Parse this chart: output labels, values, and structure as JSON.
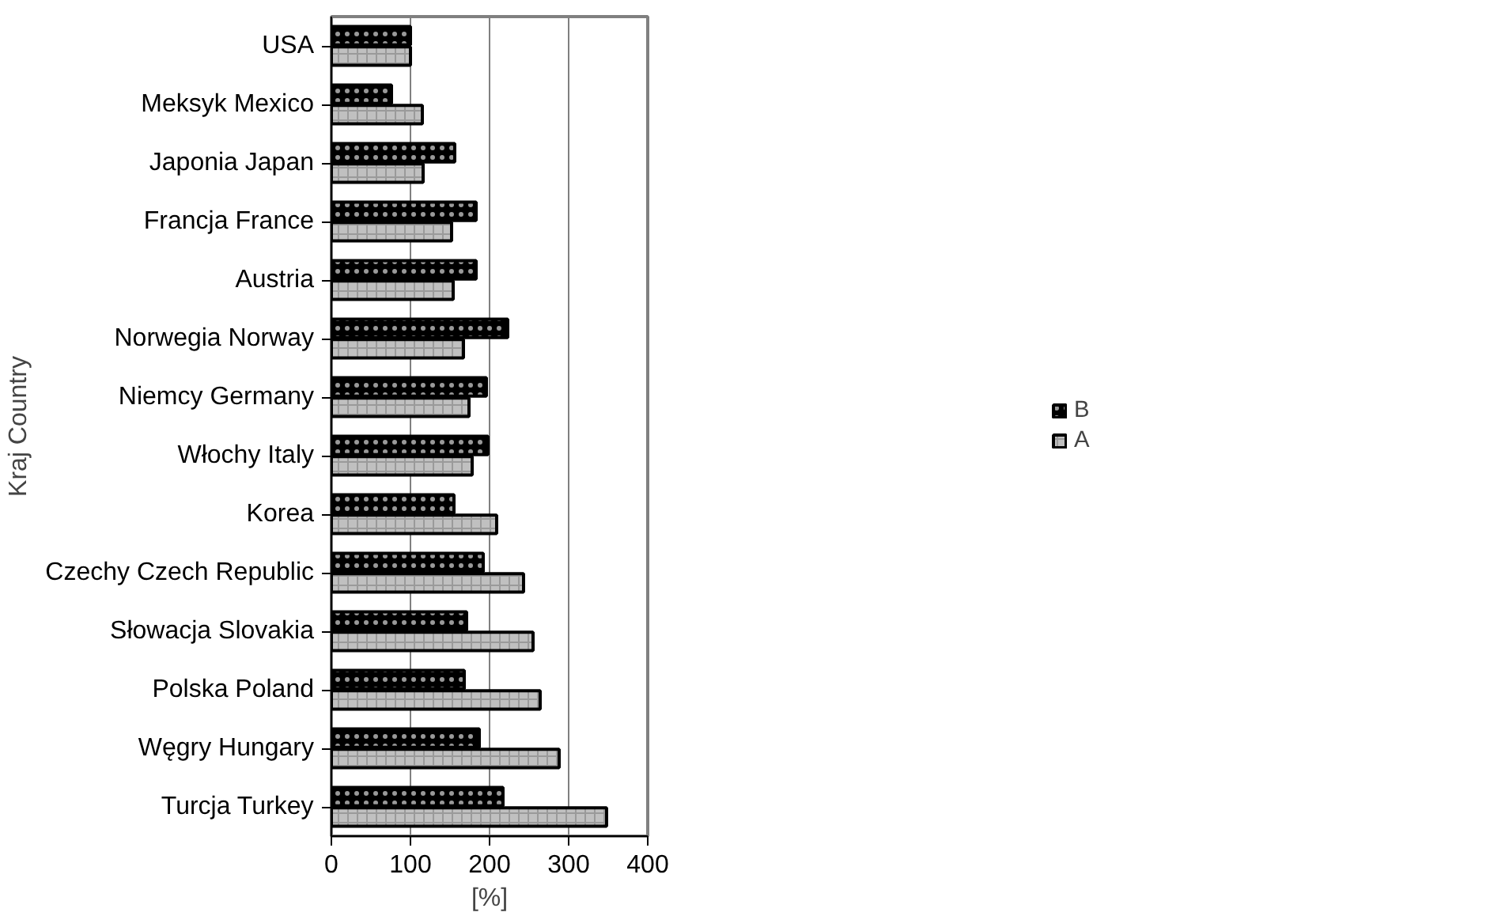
{
  "chart_data": {
    "type": "bar",
    "orientation": "horizontal",
    "xlabel": "[%]",
    "ylabel": "Kraj Country",
    "categories": [
      "USA",
      "Meksyk Mexico",
      "Japonia Japan",
      "Francja France",
      "Austria",
      "Norwegia Norway",
      "Niemcy Germany",
      "Włochy Italy",
      "Korea",
      "Czechy Czech Republic",
      "Słowacja Slovakia",
      "Polska Poland",
      "Węgry Hungary",
      "Turcja Turkey"
    ],
    "series": [
      {
        "name": "B",
        "color": "#000000",
        "values": [
          100,
          76,
          156,
          183,
          183,
          223,
          196,
          198,
          155,
          192,
          171,
          168,
          187,
          217
        ]
      },
      {
        "name": "A",
        "color": "#c0c0c0",
        "values": [
          100,
          115,
          116,
          152,
          154,
          167,
          174,
          178,
          209,
          243,
          255,
          264,
          288,
          348
        ]
      }
    ],
    "xlim": [
      0,
      400
    ],
    "xticks": [
      0,
      100,
      200,
      300,
      400
    ],
    "grid": "x",
    "legend": "right"
  }
}
